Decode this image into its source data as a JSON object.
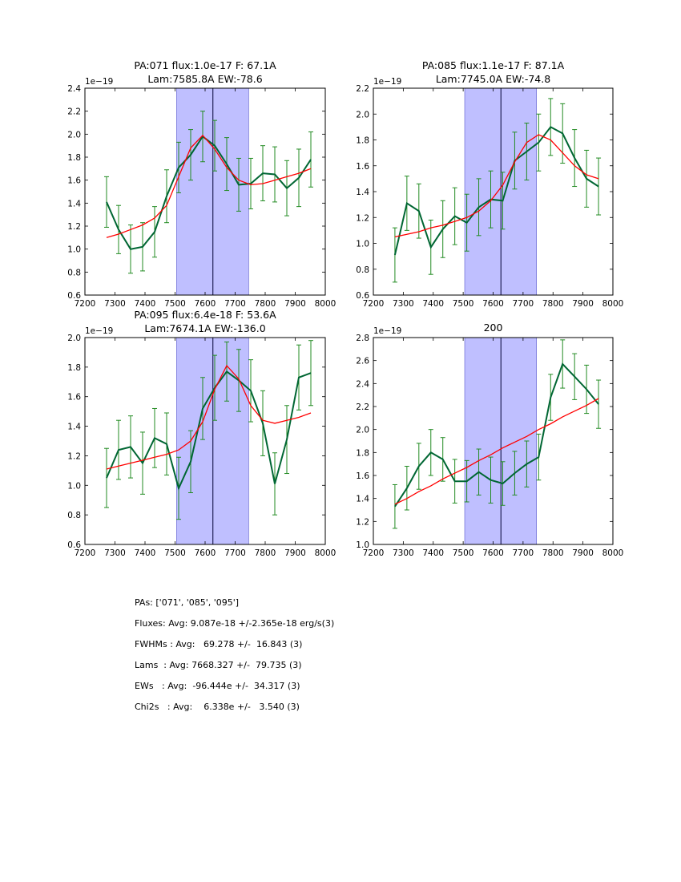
{
  "chart_data": [
    {
      "type": "line",
      "title_lines": [
        "PA:071 flux:1.0e-17 F: 67.1A",
        "Lam:7585.8A EW:-78.6"
      ],
      "offset_label": "1e−19",
      "xlim": [
        7200,
        8000
      ],
      "ylim": [
        0.6,
        2.4
      ],
      "xticks": [
        "7200",
        "7300",
        "7400",
        "7500",
        "7600",
        "7700",
        "7800",
        "7900",
        "8000"
      ],
      "yticks": [
        "0.6",
        "0.8",
        "1.0",
        "1.2",
        "1.4",
        "1.6",
        "1.8",
        "2.0",
        "2.2",
        "2.4"
      ],
      "band": [
        7505,
        7745
      ],
      "vline": 7626,
      "x": [
        7272,
        7312,
        7352,
        7392,
        7432,
        7472,
        7512,
        7552,
        7592,
        7632,
        7672,
        7712,
        7752,
        7792,
        7832,
        7872,
        7912,
        7952
      ],
      "data": [
        1.41,
        1.17,
        1.0,
        1.02,
        1.15,
        1.46,
        1.71,
        1.82,
        1.98,
        1.9,
        1.74,
        1.56,
        1.57,
        1.66,
        1.65,
        1.53,
        1.62,
        1.78
      ],
      "err": [
        0.22,
        0.21,
        0.21,
        0.21,
        0.22,
        0.23,
        0.22,
        0.22,
        0.22,
        0.22,
        0.23,
        0.23,
        0.22,
        0.24,
        0.24,
        0.24,
        0.25,
        0.24
      ],
      "model": [
        1.1,
        1.13,
        1.17,
        1.21,
        1.27,
        1.38,
        1.63,
        1.88,
        1.99,
        1.87,
        1.71,
        1.6,
        1.56,
        1.57,
        1.6,
        1.63,
        1.66,
        1.7
      ]
    },
    {
      "type": "line",
      "title_lines": [
        "PA:085 flux:1.1e-17 F: 87.1A",
        "Lam:7745.0A EW:-74.8"
      ],
      "offset_label": "1e−19",
      "xlim": [
        7200,
        8000
      ],
      "ylim": [
        0.6,
        2.2
      ],
      "xticks": [
        "7200",
        "7300",
        "7400",
        "7500",
        "7600",
        "7700",
        "7800",
        "7900",
        "8000"
      ],
      "yticks": [
        "0.6",
        "0.8",
        "1.0",
        "1.2",
        "1.4",
        "1.6",
        "1.8",
        "2.0",
        "2.2"
      ],
      "band": [
        7505,
        7745
      ],
      "vline": 7626,
      "x": [
        7272,
        7312,
        7352,
        7392,
        7432,
        7472,
        7512,
        7552,
        7592,
        7632,
        7672,
        7712,
        7752,
        7792,
        7832,
        7872,
        7912,
        7952
      ],
      "data": [
        0.91,
        1.31,
        1.25,
        0.97,
        1.11,
        1.21,
        1.16,
        1.28,
        1.34,
        1.33,
        1.64,
        1.71,
        1.78,
        1.9,
        1.85,
        1.66,
        1.5,
        1.44
      ],
      "err": [
        0.21,
        0.21,
        0.21,
        0.21,
        0.22,
        0.22,
        0.22,
        0.22,
        0.22,
        0.22,
        0.22,
        0.22,
        0.22,
        0.22,
        0.23,
        0.22,
        0.22,
        0.22
      ],
      "model": [
        1.05,
        1.07,
        1.09,
        1.12,
        1.14,
        1.17,
        1.2,
        1.25,
        1.33,
        1.45,
        1.63,
        1.78,
        1.84,
        1.8,
        1.7,
        1.6,
        1.53,
        1.5
      ]
    },
    {
      "type": "line",
      "title_lines": [
        "PA:095 flux:6.4e-18 F: 53.6A",
        "Lam:7674.1A EW:-136.0"
      ],
      "offset_label": "1e−19",
      "xlim": [
        7200,
        8000
      ],
      "ylim": [
        0.6,
        2.0
      ],
      "xticks": [
        "7200",
        "7300",
        "7400",
        "7500",
        "7600",
        "7700",
        "7800",
        "7900",
        "8000"
      ],
      "yticks": [
        "0.6",
        "0.8",
        "1.0",
        "1.2",
        "1.4",
        "1.6",
        "1.8",
        "2.0"
      ],
      "band": [
        7505,
        7745
      ],
      "vline": 7626,
      "x": [
        7272,
        7312,
        7352,
        7392,
        7432,
        7472,
        7512,
        7552,
        7592,
        7632,
        7672,
        7712,
        7752,
        7792,
        7832,
        7872,
        7912,
        7952
      ],
      "data": [
        1.05,
        1.24,
        1.26,
        1.15,
        1.32,
        1.28,
        0.98,
        1.16,
        1.52,
        1.66,
        1.77,
        1.71,
        1.64,
        1.42,
        1.01,
        1.31,
        1.73,
        1.76
      ],
      "err": [
        0.2,
        0.2,
        0.21,
        0.21,
        0.2,
        0.21,
        0.21,
        0.21,
        0.21,
        0.22,
        0.2,
        0.21,
        0.21,
        0.22,
        0.21,
        0.23,
        0.22,
        0.22
      ],
      "model": [
        1.11,
        1.13,
        1.15,
        1.17,
        1.19,
        1.21,
        1.24,
        1.3,
        1.43,
        1.65,
        1.81,
        1.72,
        1.54,
        1.44,
        1.42,
        1.44,
        1.46,
        1.49
      ]
    },
    {
      "type": "line",
      "title_lines": [
        "200"
      ],
      "offset_label": "1e−19",
      "xlim": [
        7200,
        8000
      ],
      "ylim": [
        1.0,
        2.8
      ],
      "xticks": [
        "7200",
        "7300",
        "7400",
        "7500",
        "7600",
        "7700",
        "7800",
        "7900",
        "8000"
      ],
      "yticks": [
        "1.0",
        "1.2",
        "1.4",
        "1.6",
        "1.8",
        "2.0",
        "2.2",
        "2.4",
        "2.6",
        "2.8"
      ],
      "band": [
        7505,
        7745
      ],
      "vline": 7626,
      "x": [
        7272,
        7312,
        7352,
        7392,
        7432,
        7472,
        7512,
        7552,
        7592,
        7632,
        7672,
        7712,
        7752,
        7792,
        7832,
        7872,
        7912,
        7952
      ],
      "data": [
        1.33,
        1.49,
        1.68,
        1.8,
        1.74,
        1.55,
        1.55,
        1.63,
        1.56,
        1.53,
        1.62,
        1.7,
        1.76,
        2.28,
        2.57,
        2.46,
        2.35,
        2.22
      ],
      "err": [
        0.19,
        0.19,
        0.2,
        0.2,
        0.19,
        0.19,
        0.18,
        0.2,
        0.2,
        0.19,
        0.19,
        0.2,
        0.2,
        0.2,
        0.21,
        0.2,
        0.21,
        0.21
      ],
      "model": [
        1.35,
        1.4,
        1.46,
        1.51,
        1.57,
        1.62,
        1.67,
        1.73,
        1.78,
        1.84,
        1.89,
        1.94,
        2.0,
        2.05,
        2.11,
        2.16,
        2.21,
        2.27
      ]
    }
  ],
  "stats": {
    "pas": "PAs: ['071', '085', '095']",
    "fluxes": "Fluxes: Avg: 9.087e-18 +/-2.365e-18 erg/s(3)",
    "fwhms": "FWHMs : Avg:   69.278 +/-  16.843 (3)",
    "lams": "Lams  : Avg: 7668.327 +/-  79.735 (3)",
    "ews": "EWs   : Avg:  -96.444e +/-  34.317 (3)",
    "chi2s": "Chi2s   : Avg:    6.338e +/-   3.540 (3)"
  },
  "colors": {
    "data_line": "#006633",
    "errorbar": "#228b22",
    "model_line": "#ff0000",
    "band_fill": "#bfbfff",
    "band_edge": "#0000aa",
    "vline": "#000033"
  }
}
